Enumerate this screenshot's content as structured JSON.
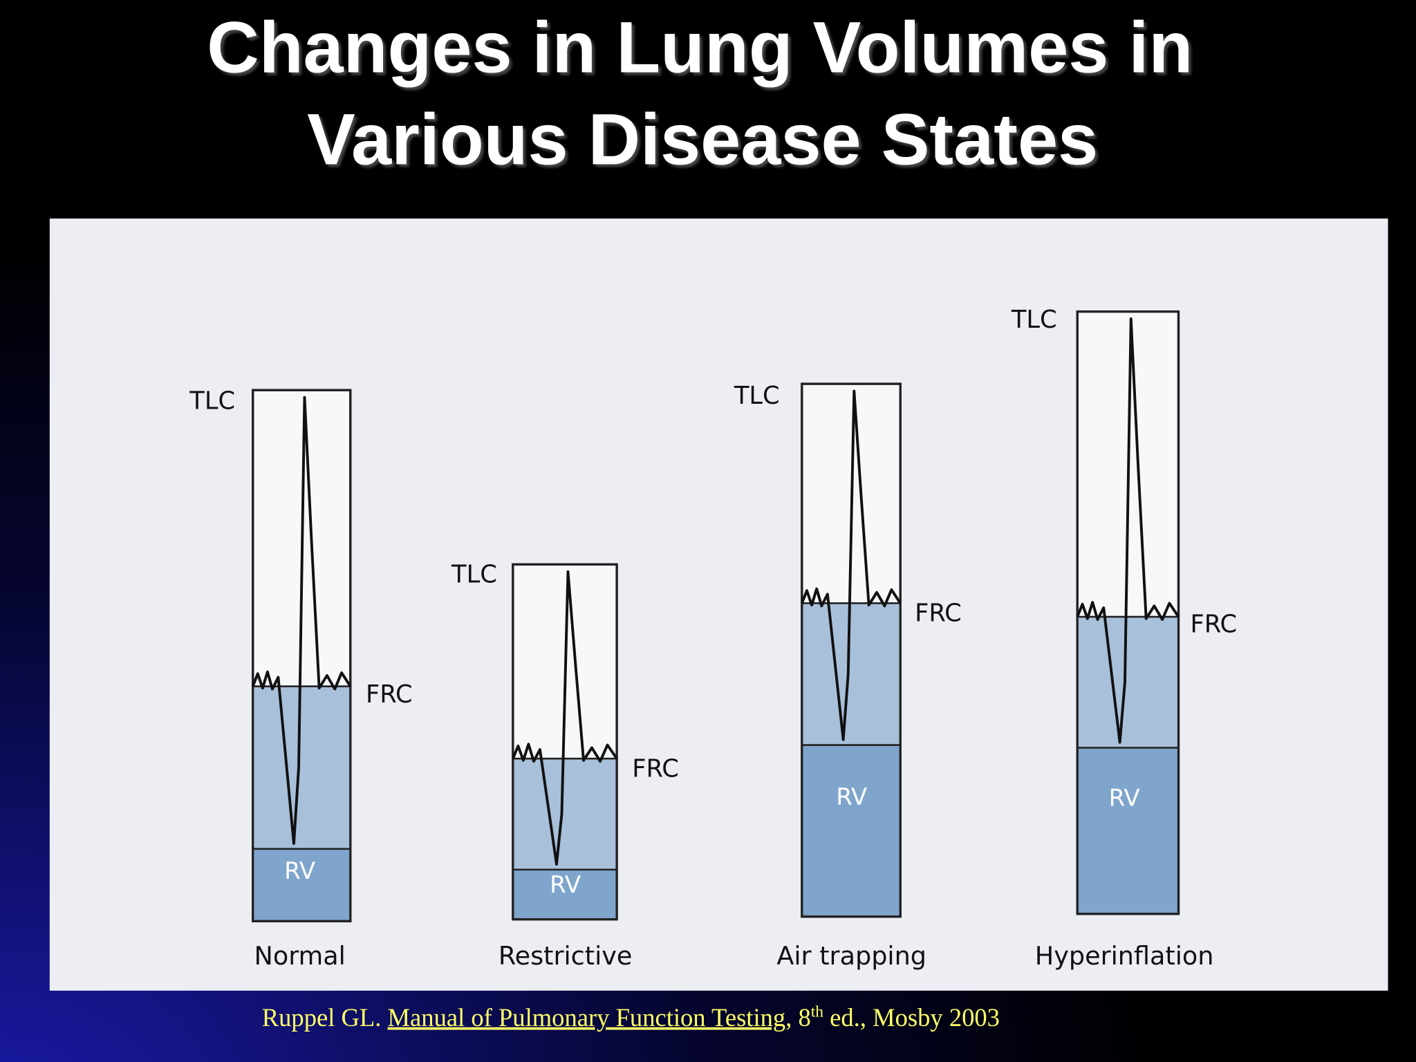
{
  "title": {
    "line1": "Changes in Lung Volumes in",
    "line2": "Various Disease States"
  },
  "diagram": {
    "panels": [
      {
        "tlc": "TLC",
        "frc": "FRC",
        "rv": "RV",
        "label": "Normal"
      },
      {
        "tlc": "TLC",
        "frc": "FRC",
        "rv": "RV",
        "label": "Restrictive"
      },
      {
        "tlc": "TLC",
        "frc": "FRC",
        "rv": "RV",
        "label": "Air trapping"
      },
      {
        "tlc": "TLC",
        "frc": "FRC",
        "rv": "RV",
        "label": "Hyperinflation"
      }
    ]
  },
  "citation": {
    "author": "Ruppel GL. ",
    "book": "Manual of Pulmonary Function Testing",
    "edition": ", 8",
    "superscript": "th",
    "rest": " ed., Mosby 2003"
  }
}
